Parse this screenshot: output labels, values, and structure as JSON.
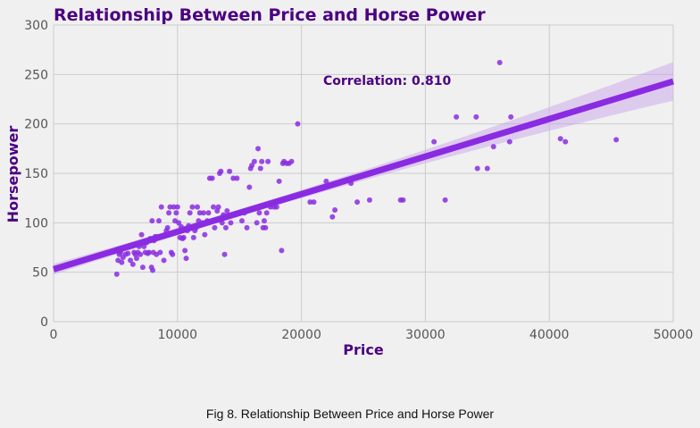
{
  "chart_data": {
    "type": "scatter",
    "title": "Relationship Between Price and Horse Power",
    "xlabel": "Price",
    "ylabel": "Horsepower",
    "xlim": [
      0,
      50000
    ],
    "ylim": [
      0,
      300
    ],
    "xticks": [
      0,
      10000,
      20000,
      30000,
      40000,
      50000
    ],
    "yticks": [
      0,
      50,
      100,
      150,
      200,
      250,
      300
    ],
    "grid": true,
    "annotation": "Correlation: 0.810",
    "regression": {
      "intercept": 53,
      "slope": 0.0038
    },
    "points": [
      [
        5100,
        48
      ],
      [
        5200,
        62
      ],
      [
        5300,
        68
      ],
      [
        5400,
        70
      ],
      [
        5500,
        60
      ],
      [
        5600,
        65
      ],
      [
        5800,
        68
      ],
      [
        6000,
        69
      ],
      [
        6200,
        62
      ],
      [
        6400,
        58
      ],
      [
        6500,
        70
      ],
      [
        6600,
        68
      ],
      [
        6700,
        64
      ],
      [
        6800,
        70
      ],
      [
        6900,
        76
      ],
      [
        7000,
        68
      ],
      [
        7100,
        88
      ],
      [
        7200,
        55
      ],
      [
        7300,
        76
      ],
      [
        7400,
        70
      ],
      [
        7500,
        80
      ],
      [
        7600,
        69
      ],
      [
        7700,
        70
      ],
      [
        7800,
        84
      ],
      [
        7900,
        55
      ],
      [
        7950,
        102
      ],
      [
        8000,
        52
      ],
      [
        8050,
        70
      ],
      [
        8100,
        82
      ],
      [
        8200,
        86
      ],
      [
        8300,
        68
      ],
      [
        8400,
        86
      ],
      [
        8500,
        102
      ],
      [
        8600,
        70
      ],
      [
        8700,
        116
      ],
      [
        8800,
        86
      ],
      [
        8900,
        62
      ],
      [
        9000,
        88
      ],
      [
        9100,
        92
      ],
      [
        9200,
        95
      ],
      [
        9300,
        110
      ],
      [
        9400,
        116
      ],
      [
        9500,
        70
      ],
      [
        9600,
        68
      ],
      [
        9700,
        116
      ],
      [
        9800,
        102
      ],
      [
        9900,
        110
      ],
      [
        10000,
        116
      ],
      [
        10100,
        100
      ],
      [
        10200,
        85
      ],
      [
        10300,
        96
      ],
      [
        10400,
        84
      ],
      [
        10500,
        85
      ],
      [
        10600,
        72
      ],
      [
        10700,
        64
      ],
      [
        10800,
        92
      ],
      [
        10900,
        97
      ],
      [
        11000,
        110
      ],
      [
        11100,
        95
      ],
      [
        11200,
        116
      ],
      [
        11300,
        85
      ],
      [
        11400,
        92
      ],
      [
        11500,
        95
      ],
      [
        11600,
        116
      ],
      [
        11700,
        102
      ],
      [
        11800,
        110
      ],
      [
        12000,
        100
      ],
      [
        12100,
        110
      ],
      [
        12200,
        88
      ],
      [
        12400,
        102
      ],
      [
        12500,
        110
      ],
      [
        12600,
        145
      ],
      [
        12800,
        145
      ],
      [
        12900,
        116
      ],
      [
        13000,
        95
      ],
      [
        13200,
        112
      ],
      [
        13300,
        116
      ],
      [
        13400,
        150
      ],
      [
        13500,
        152
      ],
      [
        13600,
        100
      ],
      [
        13700,
        108
      ],
      [
        13800,
        68
      ],
      [
        13900,
        95
      ],
      [
        14000,
        112
      ],
      [
        14200,
        152
      ],
      [
        14300,
        100
      ],
      [
        14500,
        145
      ],
      [
        14800,
        145
      ],
      [
        15200,
        102
      ],
      [
        15400,
        110
      ],
      [
        15600,
        95
      ],
      [
        15800,
        136
      ],
      [
        15900,
        155
      ],
      [
        16000,
        158
      ],
      [
        16200,
        162
      ],
      [
        16400,
        100
      ],
      [
        16500,
        175
      ],
      [
        16600,
        110
      ],
      [
        16700,
        155
      ],
      [
        16800,
        162
      ],
      [
        16900,
        95
      ],
      [
        17000,
        102
      ],
      [
        17100,
        95
      ],
      [
        17200,
        110
      ],
      [
        17300,
        162
      ],
      [
        17500,
        116
      ],
      [
        17800,
        116
      ],
      [
        18000,
        116
      ],
      [
        18200,
        142
      ],
      [
        18300,
        122
      ],
      [
        18400,
        72
      ],
      [
        18500,
        160
      ],
      [
        18600,
        162
      ],
      [
        18800,
        160
      ],
      [
        19000,
        160
      ],
      [
        19200,
        162
      ],
      [
        19700,
        200
      ],
      [
        20700,
        121
      ],
      [
        21000,
        121
      ],
      [
        21500,
        135
      ],
      [
        22000,
        142
      ],
      [
        22500,
        106
      ],
      [
        22700,
        113
      ],
      [
        24000,
        140
      ],
      [
        24500,
        121
      ],
      [
        25500,
        123
      ],
      [
        28000,
        123
      ],
      [
        28200,
        123
      ],
      [
        30700,
        182
      ],
      [
        31600,
        123
      ],
      [
        32500,
        207
      ],
      [
        34100,
        207
      ],
      [
        34200,
        155
      ],
      [
        35000,
        155
      ],
      [
        35500,
        177
      ],
      [
        36000,
        262
      ],
      [
        36800,
        182
      ],
      [
        36900,
        207
      ],
      [
        40900,
        185
      ],
      [
        41300,
        182
      ],
      [
        45400,
        184
      ]
    ]
  },
  "caption": "Fig 8. Relationship Between Price and Horse Power",
  "colors": {
    "background": "#f0f0f0",
    "grid": "#cbcbcb",
    "title": "#4b0082",
    "points": "#8a2be2",
    "line": "#8a2be2",
    "band": "#c9a6ec"
  }
}
